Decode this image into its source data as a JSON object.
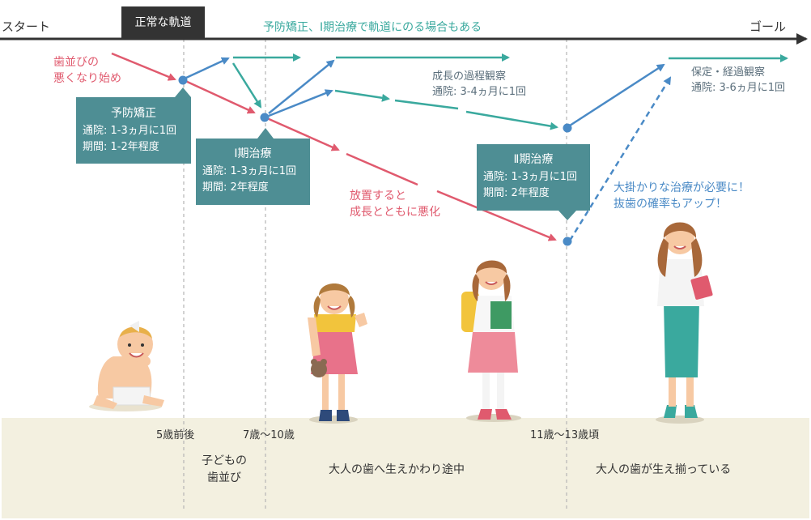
{
  "timeline": {
    "start_label": "スタート",
    "goal_label": "ゴール",
    "normal_track_label": "正常な軌道",
    "note_top": "予防矯正、Ⅰ期治療で軌道にのる場合もある"
  },
  "annotations": {
    "worsening_start": [
      "歯並びの",
      "悪くなり始め"
    ],
    "neglect": [
      "放置すると",
      "成長とともに悪化"
    ],
    "growth_observation": [
      "成長の過程観察",
      "通院: 3-4ヵ月に1回"
    ],
    "retention": [
      "保定・経過観察",
      "通院: 3-6ヵ月に1回"
    ],
    "major_treatment": [
      "大掛かりな治療が必要に！",
      "抜歯の確率もアップ！"
    ]
  },
  "boxes": {
    "preventive": {
      "title": "予防矯正",
      "lines": [
        "通院: 1-3ヵ月に1回",
        "期間: 1-2年程度"
      ]
    },
    "phase1": {
      "title": "Ⅰ期治療",
      "lines": [
        "通院: 1-3ヵ月に1回",
        "期間: 2年程度"
      ]
    },
    "phase2": {
      "title": "Ⅱ期治療",
      "lines": [
        "通院: 1-3ヵ月に1回",
        "期間: 2年程度"
      ]
    }
  },
  "bottom": {
    "ages": [
      "5歳前後",
      "7歳〜10歳",
      "11歳〜13歳頃"
    ],
    "stages": [
      [
        "子どもの",
        "歯並び"
      ],
      [
        "大人の歯へ生えかわり途中"
      ],
      [
        "大人の歯が生え揃っている"
      ]
    ]
  },
  "colors": {
    "red": "#e05a6e",
    "teal": "#3aa99e",
    "blue": "#4a8ac6",
    "box": "#4e8e94",
    "axis": "#333333",
    "bottom_band": "#f3f0e0"
  },
  "figures": [
    "baby",
    "girl-with-teddy-bear",
    "schoolgirl-with-backpack",
    "woman-with-notebook"
  ]
}
